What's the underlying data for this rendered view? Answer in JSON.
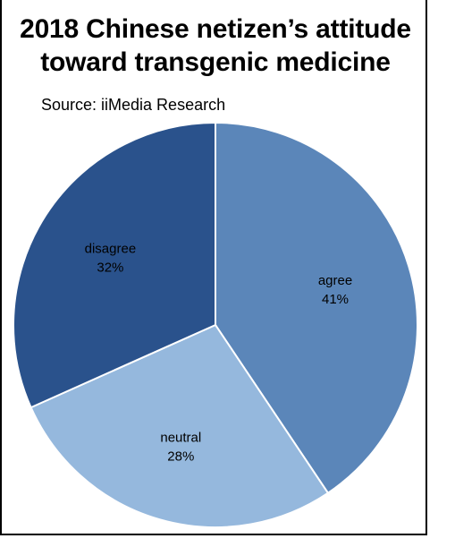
{
  "title": "2018 Chinese netizen’s attitude toward transgenic medicine",
  "subtitle": "Source: iiMedia Research",
  "chart_data": {
    "type": "pie",
    "title": "2018 Chinese netizen’s attitude toward transgenic medicine",
    "subtitle": "Source: iiMedia Research",
    "start_angle_deg": 0,
    "direction": "clockwise",
    "slices": [
      {
        "label": "agree",
        "value": 41,
        "display": "41%",
        "color": "#5b86b9"
      },
      {
        "label": "neutral",
        "value": 28,
        "display": "28%",
        "color": "#95b8dd"
      },
      {
        "label": "disagree",
        "value": 32,
        "display": "32%",
        "color": "#2a528c"
      }
    ]
  }
}
